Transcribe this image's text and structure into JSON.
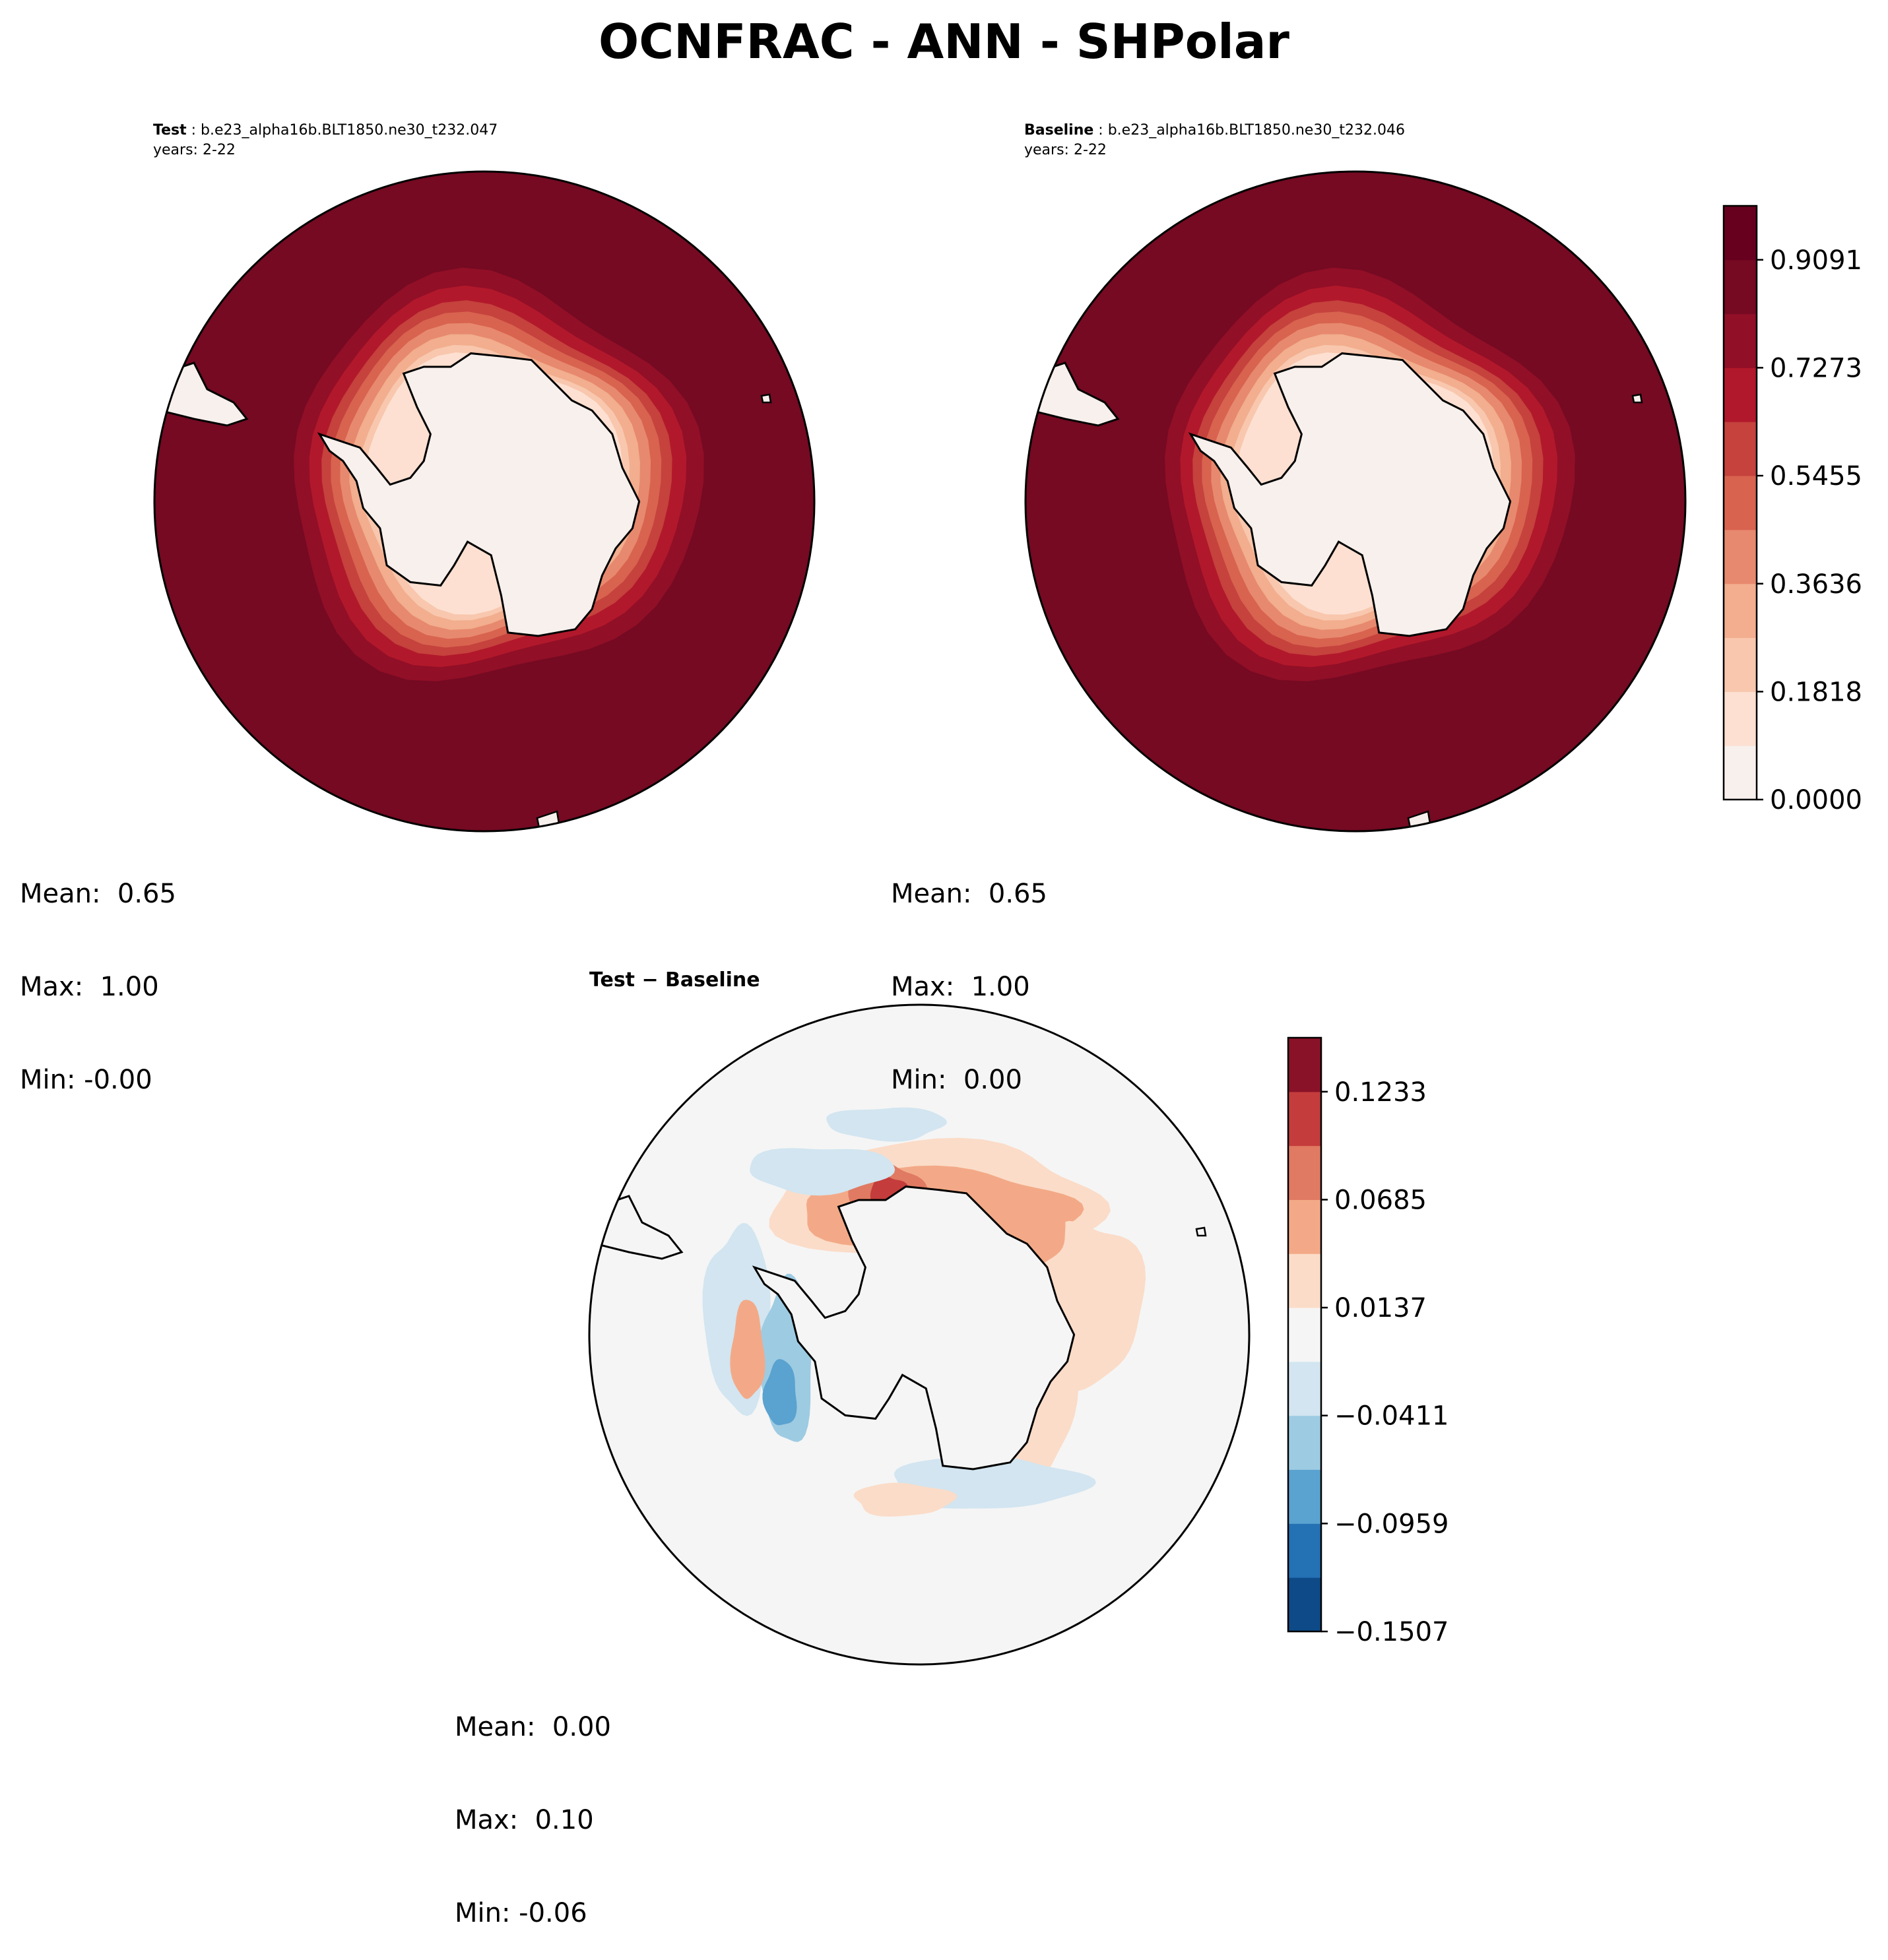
{
  "figure": {
    "title": "OCNFRAC - ANN - SHPolar"
  },
  "panels": {
    "test": {
      "label": "Test",
      "case": "b.e23_alpha16b.BLT1850.ne30_t232.047",
      "years": "years: 2-22",
      "stats": {
        "mean": "Mean:  0.65",
        "max": "Max:  1.00",
        "min": "Min: -0.00"
      }
    },
    "baseline": {
      "label": "Baseline",
      "case": "b.e23_alpha16b.BLT1850.ne30_t232.046",
      "years": "years: 2-22",
      "stats": {
        "mean": "Mean:  0.65",
        "max": "Max:  1.00",
        "min": "Min:  0.00"
      }
    },
    "diff": {
      "title": "Test − Baseline",
      "stats": {
        "mean": "Mean:  0.00",
        "max": "Max:  0.10",
        "min": "Min: -0.06"
      }
    }
  },
  "chart_data": [
    {
      "type": "heatmap",
      "name": "test",
      "projection": "South Polar Stereographic",
      "variable": "OCNFRAC",
      "colormap": "RdBu_r",
      "levels": [
        0.0,
        0.0909,
        0.1818,
        0.2727,
        0.3636,
        0.4545,
        0.5455,
        0.6364,
        0.7273,
        0.8182,
        0.9091,
        1.0
      ],
      "mean": 0.65,
      "max": 1.0,
      "min": -0.0
    },
    {
      "type": "heatmap",
      "name": "baseline",
      "projection": "South Polar Stereographic",
      "variable": "OCNFRAC",
      "colormap": "RdBu_r",
      "levels": [
        0.0,
        0.0909,
        0.1818,
        0.2727,
        0.3636,
        0.4545,
        0.5455,
        0.6364,
        0.7273,
        0.8182,
        0.9091,
        1.0
      ],
      "colorbar_ticks": [
        "0.0000",
        "0.1818",
        "0.3636",
        "0.5455",
        "0.7273",
        "0.9091"
      ],
      "mean": 0.65,
      "max": 1.0,
      "min": 0.0
    },
    {
      "type": "heatmap",
      "name": "difference",
      "projection": "South Polar Stereographic",
      "colormap": "RdBu_r",
      "levels": [
        -0.1507,
        -0.1233,
        -0.0959,
        -0.0685,
        -0.0411,
        -0.0137,
        0.0137,
        0.0411,
        0.0685,
        0.0959,
        0.1233,
        0.1507
      ],
      "colorbar_ticks": [
        "−0.1507",
        "−0.0959",
        "−0.0411",
        "0.0137",
        "0.0685",
        "0.1233"
      ],
      "mean": 0.0,
      "max": 0.1,
      "min": -0.06
    }
  ],
  "colors": {
    "seq": [
      "#f7f0ed",
      "#fde0d1",
      "#f8c7ae",
      "#f2ae8e",
      "#e7896e",
      "#d8634f",
      "#c5423d",
      "#b2182b",
      "#910f27",
      "#750a22",
      "#67001f"
    ],
    "div": [
      "#0d4a87",
      "#2471b4",
      "#5aa2cf",
      "#9dcbe2",
      "#d2e5f0",
      "#f5f5f5",
      "#fbdcc8",
      "#f3a987",
      "#e07a62",
      "#c43c3c",
      "#8a1228"
    ],
    "ocean_max": "#750a22",
    "land": "#f7f0ed",
    "diff_background": "#f5f5f5"
  },
  "icons": {
    "coastline": "antarctica-coastline-icon"
  }
}
